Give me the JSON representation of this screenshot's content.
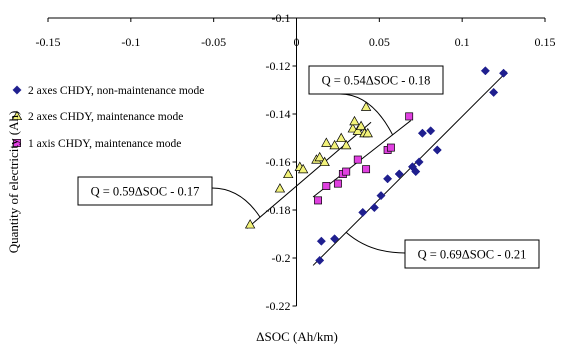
{
  "chart_data": {
    "type": "scatter",
    "title": "",
    "xlabel": "ΔSOC (Ah/km)",
    "ylabel": "Quantity of electricity (Ah)",
    "xlim": [
      -0.15,
      0.15
    ],
    "ylim": [
      -0.22,
      -0.1
    ],
    "x_ticks": [
      "-0.15",
      "-0.1",
      "-0.05",
      "0",
      "0.05",
      "0.1",
      "0.15"
    ],
    "y_ticks": [
      "-0.1",
      "-0.12",
      "-0.14",
      "-0.16",
      "-0.18",
      "-0.2",
      "-0.22"
    ],
    "x_tick_values": [
      -0.15,
      -0.1,
      -0.05,
      0,
      0.05,
      0.1,
      0.15
    ],
    "y_tick_values": [
      -0.1,
      -0.12,
      -0.14,
      -0.16,
      -0.18,
      -0.2,
      -0.22
    ],
    "grid": false,
    "legend_position": "top-left",
    "series": [
      {
        "name": "2 axes CHDY, non-maintenance mode",
        "marker": "diamond",
        "color": "#1f1f8f",
        "points": [
          [
            0.014,
            -0.201
          ],
          [
            0.015,
            -0.193
          ],
          [
            0.023,
            -0.192
          ],
          [
            0.04,
            -0.181
          ],
          [
            0.047,
            -0.179
          ],
          [
            0.051,
            -0.174
          ],
          [
            0.055,
            -0.167
          ],
          [
            0.062,
            -0.165
          ],
          [
            0.07,
            -0.162
          ],
          [
            0.072,
            -0.164
          ],
          [
            0.074,
            -0.16
          ],
          [
            0.076,
            -0.148
          ],
          [
            0.081,
            -0.147
          ],
          [
            0.085,
            -0.155
          ],
          [
            0.114,
            -0.122
          ],
          [
            0.119,
            -0.131
          ],
          [
            0.125,
            -0.123
          ]
        ]
      },
      {
        "name": "2 axes CHDY, maintenance mode",
        "marker": "triangle",
        "color": "#f2f27a",
        "points": [
          [
            -0.028,
            -0.186
          ],
          [
            -0.01,
            -0.171
          ],
          [
            -0.005,
            -0.165
          ],
          [
            0.002,
            -0.162
          ],
          [
            0.004,
            -0.163
          ],
          [
            0.012,
            -0.159
          ],
          [
            0.014,
            -0.158
          ],
          [
            0.017,
            -0.16
          ],
          [
            0.018,
            -0.152
          ],
          [
            0.023,
            -0.153
          ],
          [
            0.027,
            -0.15
          ],
          [
            0.03,
            -0.153
          ],
          [
            0.034,
            -0.146
          ],
          [
            0.035,
            -0.143
          ],
          [
            0.037,
            -0.147
          ],
          [
            0.039,
            -0.145
          ],
          [
            0.041,
            -0.148
          ],
          [
            0.042,
            -0.137
          ],
          [
            0.043,
            -0.148
          ]
        ]
      },
      {
        "name": "1 axis CHDY, maintenance mode",
        "marker": "square",
        "color": "#e040e0",
        "points": [
          [
            0.013,
            -0.176
          ],
          [
            0.018,
            -0.17
          ],
          [
            0.025,
            -0.169
          ],
          [
            0.028,
            -0.165
          ],
          [
            0.03,
            -0.164
          ],
          [
            0.037,
            -0.159
          ],
          [
            0.042,
            -0.163
          ],
          [
            0.055,
            -0.155
          ],
          [
            0.057,
            -0.154
          ],
          [
            0.068,
            -0.141
          ]
        ]
      }
    ],
    "fits": [
      {
        "label": "Q = 0.69ΔSOC - 0.21",
        "slope": 0.69,
        "intercept": -0.21,
        "x_range": [
          0.01,
          0.127
        ]
      },
      {
        "label": "Q = 0.54ΔSOC - 0.18",
        "slope": 0.54,
        "intercept": -0.18,
        "x_range": [
          0.01,
          0.069
        ]
      },
      {
        "label": "Q = 0.59ΔSOC - 0.17",
        "slope": 0.59,
        "intercept": -0.17,
        "x_range": [
          -0.03,
          0.045
        ]
      }
    ],
    "annotations": [
      {
        "text": "Q = 0.54ΔSOC - 0.18",
        "attached_to": "fit-2"
      },
      {
        "text": "Q = 0.59ΔSOC - 0.17",
        "attached_to": "fit-3"
      },
      {
        "text": "Q = 0.69ΔSOC - 0.21",
        "attached_to": "fit-1"
      }
    ]
  },
  "colors": {
    "axis": "#000000",
    "marker_stroke": "#000000"
  }
}
